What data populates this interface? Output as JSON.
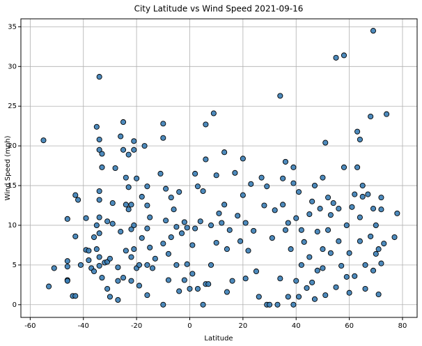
{
  "chart_data": {
    "type": "scatter",
    "title": "City Latitude vs Wind Speed 2021-09-16",
    "x_label": "Latitude",
    "y_label": "Wind Speed (mph)",
    "color": "#3a7db5",
    "edge_color": "#000000",
    "grid": true,
    "xlim": [
      -63.5,
      85.5
    ],
    "ylim": [
      -1.6,
      36
    ],
    "xticks": [
      -60,
      -40,
      -20,
      0,
      20,
      40,
      60,
      80
    ],
    "yticks": [
      0,
      5,
      10,
      15,
      20,
      25,
      30,
      35
    ],
    "x": [
      -55,
      -53,
      -51,
      -46,
      -46,
      -46,
      -46,
      -46,
      -43,
      -43,
      -44,
      -43,
      -42,
      -41,
      -39,
      -39,
      -38,
      -38,
      -37,
      -36,
      -36,
      -35,
      -35,
      -35,
      -34,
      -34,
      -34,
      -33,
      -34,
      -34,
      -33,
      -34,
      -34,
      -34,
      -34,
      -33,
      -32,
      -31,
      -31,
      -31,
      -30,
      -30,
      -29,
      -29,
      -28,
      -27,
      -27,
      -27,
      -26,
      -26,
      -25,
      -25,
      -25,
      -24,
      -24,
      -24,
      -23,
      -23,
      -23,
      -22,
      -22,
      -22,
      -22,
      -21,
      -21,
      -21,
      -21,
      -20,
      -20,
      -19,
      -19,
      -18,
      -18,
      -17,
      -16,
      -16,
      -16,
      -16,
      -16,
      -15,
      -15,
      -14,
      -13,
      -11,
      -10,
      -10,
      -10,
      -10,
      -9,
      -9,
      -8,
      -8,
      -7,
      -7,
      -6,
      -5,
      -5,
      -4,
      -4,
      -3,
      -2,
      -2,
      -1,
      -1,
      0,
      1,
      1,
      2,
      2,
      3,
      3,
      4,
      5,
      5,
      6,
      6,
      6,
      7,
      8,
      8,
      9,
      10,
      10,
      11,
      12,
      13,
      13,
      14,
      14,
      15,
      16,
      17,
      18,
      19,
      20,
      20,
      21,
      21,
      22,
      23,
      24,
      25,
      26,
      27,
      28,
      29,
      29,
      30,
      31,
      32,
      33,
      34,
      34,
      35,
      35,
      36,
      36,
      37,
      37,
      38,
      39,
      39,
      39,
      40,
      40,
      41,
      41,
      42,
      42,
      43,
      44,
      45,
      45,
      46,
      46,
      47,
      47,
      48,
      48,
      49,
      50,
      50,
      50,
      51,
      51,
      52,
      52,
      53,
      53,
      54,
      55,
      55,
      56,
      56,
      57,
      58,
      58,
      59,
      59,
      60,
      60,
      61,
      62,
      62,
      63,
      63,
      64,
      64,
      64,
      65,
      65,
      66,
      66,
      67,
      68,
      68,
      69,
      69,
      69,
      70,
      70,
      71,
      71,
      72,
      72,
      72,
      73,
      74,
      77,
      78
    ],
    "values": [
      20.7,
      2.3,
      4.6,
      10.8,
      5.5,
      4.8,
      3.1,
      3.0,
      13.8,
      8.6,
      1.1,
      1.1,
      13.2,
      5.0,
      10.9,
      6.9,
      6.8,
      5.6,
      4.6,
      4.2,
      8.5,
      10.0,
      7.0,
      22.4,
      28.7,
      20.8,
      19.5,
      19.0,
      14.3,
      13.2,
      17.3,
      11.0,
      9.0,
      6.0,
      4.9,
      3.4,
      5.3,
      5.4,
      2.0,
      10.5,
      5.8,
      1.0,
      10.2,
      12.8,
      17.2,
      3.0,
      4.7,
      0.6,
      21.2,
      9.2,
      23.0,
      19.5,
      3.4,
      16.0,
      12.6,
      6.8,
      18.9,
      14.8,
      12.0,
      12.6,
      9.5,
      6.0,
      3.0,
      20.6,
      19.5,
      10.0,
      7.0,
      15.9,
      4.6,
      5.0,
      2.4,
      13.6,
      8.4,
      20.0,
      14.9,
      12.5,
      9.6,
      5.0,
      1.2,
      11.0,
      7.2,
      4.6,
      5.8,
      16.5,
      21.0,
      22.8,
      0.0,
      7.7,
      14.6,
      10.6,
      3.1,
      6.4,
      13.5,
      8.5,
      12.0,
      9.8,
      5.0,
      14.2,
      1.7,
      9.0,
      10.4,
      3.1,
      5.1,
      9.7,
      2.0,
      7.5,
      3.9,
      16.5,
      9.6,
      14.9,
      2.0,
      10.5,
      14.3,
      0.0,
      22.7,
      18.3,
      2.6,
      2.6,
      10.0,
      5.0,
      24.1,
      16.3,
      7.8,
      11.5,
      10.3,
      19.2,
      12.6,
      7.0,
      1.6,
      9.4,
      3.0,
      16.6,
      11.2,
      8.0,
      18.4,
      13.8,
      10.3,
      3.3,
      6.8,
      15.2,
      9.3,
      4.2,
      1.0,
      16.0,
      12.5,
      14.9,
      0.0,
      0.0,
      8.4,
      11.9,
      0.0,
      26.3,
      3.3,
      15.9,
      12.6,
      18.0,
      9.4,
      10.3,
      1.0,
      7.0,
      17.3,
      15.3,
      0.0,
      10.9,
      3.0,
      14.2,
      1.0,
      9.4,
      5.0,
      7.9,
      2.1,
      11.4,
      6.0,
      13.0,
      2.8,
      15.0,
      0.7,
      9.2,
      4.3,
      12.1,
      16.0,
      7.0,
      4.6,
      20.4,
      1.2,
      13.5,
      9.4,
      11.3,
      6.5,
      12.8,
      2.2,
      31.1,
      8.0,
      12.1,
      4.9,
      31.4,
      17.3,
      10.0,
      3.5,
      6.5,
      1.5,
      12.3,
      13.9,
      3.6,
      21.8,
      17.3,
      20.8,
      11.0,
      8.0,
      15.0,
      13.6,
      5.0,
      2.0,
      13.9,
      23.7,
      8.6,
      34.5,
      12.1,
      4.3,
      10.0,
      6.4,
      7.0,
      1.3,
      13.5,
      12.0,
      5.2,
      7.7,
      24.0,
      8.5,
      11.5
    ]
  }
}
